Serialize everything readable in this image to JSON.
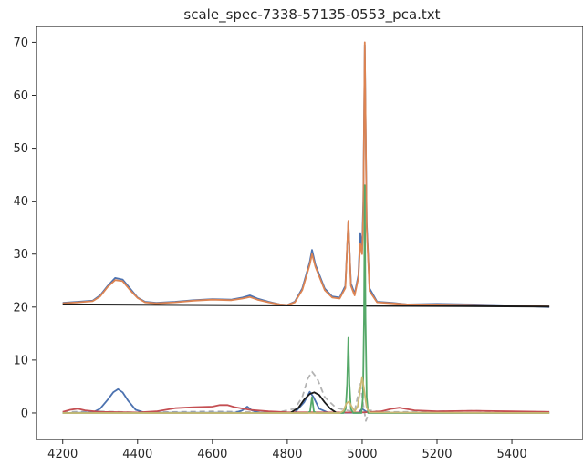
{
  "chart_data": {
    "type": "line",
    "title": "scale_spec-7338-57135-0553_pca.txt",
    "xlabel": "",
    "ylabel": "",
    "xlim": [
      4130,
      5590
    ],
    "ylim": [
      -5,
      73
    ],
    "x_ticks": [
      4200,
      4400,
      4600,
      4800,
      5000,
      5200,
      5400
    ],
    "y_ticks": [
      0,
      10,
      20,
      30,
      40,
      50,
      60,
      70
    ],
    "grid": false,
    "legend": "none",
    "series": [
      {
        "kind": "spectrum",
        "color": "#4c72b0",
        "x": [
          4200,
          4240,
          4280,
          4300,
          4320,
          4340,
          4360,
          4380,
          4400,
          4420,
          4450,
          4500,
          4550,
          4600,
          4650,
          4680,
          4700,
          4720,
          4750,
          4780,
          4800,
          4820,
          4840,
          4860,
          4866,
          4875,
          4900,
          4920,
          4940,
          4955,
          4963,
          4970,
          4980,
          4990,
          4995,
          5000,
          5003,
          5007,
          5012,
          5020,
          5040,
          5080,
          5120,
          5200,
          5300,
          5400,
          5500
        ],
        "y": [
          20.8,
          21.0,
          21.2,
          22.2,
          24.0,
          25.5,
          25.2,
          23.5,
          21.8,
          21.0,
          20.8,
          21.0,
          21.3,
          21.5,
          21.4,
          21.8,
          22.2,
          21.6,
          21.0,
          20.5,
          20.4,
          21.0,
          23.5,
          28.5,
          30.8,
          28.0,
          23.5,
          22.0,
          21.8,
          24.0,
          36.0,
          24.5,
          22.5,
          26.0,
          34.0,
          31.0,
          40.0,
          69.5,
          36.0,
          23.5,
          21.0,
          20.8,
          20.5,
          20.6,
          20.5,
          20.3,
          20.0
        ]
      },
      {
        "kind": "model",
        "color": "#dd8452",
        "x": [
          4200,
          4240,
          4280,
          4300,
          4320,
          4340,
          4360,
          4380,
          4400,
          4420,
          4450,
          4500,
          4550,
          4600,
          4650,
          4680,
          4700,
          4720,
          4750,
          4780,
          4800,
          4820,
          4840,
          4860,
          4866,
          4875,
          4900,
          4920,
          4940,
          4955,
          4963,
          4970,
          4980,
          4990,
          4995,
          5000,
          5003,
          5007,
          5012,
          5020,
          5040,
          5080,
          5120,
          5200,
          5300,
          5400,
          5500
        ],
        "y": [
          20.7,
          20.9,
          21.1,
          22.0,
          23.8,
          25.1,
          24.9,
          23.2,
          21.7,
          20.9,
          20.7,
          20.9,
          21.2,
          21.4,
          21.3,
          21.6,
          21.9,
          21.4,
          20.9,
          20.5,
          20.4,
          20.9,
          23.2,
          28.0,
          30.0,
          27.6,
          23.2,
          21.8,
          21.6,
          23.6,
          36.3,
          24.0,
          22.2,
          25.5,
          32.0,
          30.0,
          38.0,
          70.0,
          35.0,
          23.0,
          20.9,
          20.7,
          20.5,
          20.5,
          20.4,
          20.3,
          20.1
        ]
      },
      {
        "kind": "continuum",
        "color": "#1a1a1a",
        "x": [
          4200,
          5500
        ],
        "y": [
          20.5,
          20.1
        ]
      },
      {
        "kind": "residual",
        "color": "#b3b3b3",
        "dashed": true,
        "x": [
          4200,
          4300,
          4400,
          4500,
          4600,
          4700,
          4780,
          4820,
          4840,
          4855,
          4866,
          4880,
          4900,
          4930,
          4960,
          4980,
          4995,
          5003,
          5010,
          5020,
          5050,
          5100,
          5200,
          5300,
          5400,
          5500
        ],
        "y": [
          0.2,
          0.3,
          0.1,
          0.2,
          0.3,
          0.2,
          0.2,
          0.8,
          3.0,
          6.5,
          7.8,
          6.5,
          3.0,
          1.0,
          0.5,
          0.3,
          5.5,
          1.5,
          -1.5,
          0.5,
          0.2,
          0.2,
          0.3,
          0.4,
          0.2,
          0.2
        ]
      },
      {
        "kind": "component",
        "color": "#4c72b0",
        "x": [
          4200,
          4280,
          4300,
          4320,
          4335,
          4348,
          4360,
          4375,
          4395,
          4420,
          4660,
          4680,
          4693,
          4705,
          4725,
          4820,
          4845,
          4860,
          4870,
          4885,
          4910,
          4990,
          5000,
          5010,
          5020,
          5500
        ],
        "y": [
          0,
          0.1,
          0.8,
          2.5,
          3.9,
          4.5,
          3.9,
          2.3,
          0.6,
          0.05,
          0.05,
          0.5,
          1.2,
          0.5,
          0.05,
          0.05,
          2.0,
          4.0,
          3.0,
          0.8,
          0.05,
          0.05,
          0.8,
          0.3,
          0.05,
          0
        ]
      },
      {
        "kind": "component",
        "color": "#c44e52",
        "x": [
          4200,
          4220,
          4240,
          4260,
          4300,
          4400,
          4450,
          4500,
          4550,
          4600,
          4620,
          4640,
          4660,
          4700,
          4750,
          4800,
          5000,
          5050,
          5080,
          5100,
          5140,
          5200,
          5300,
          5400,
          5500
        ],
        "y": [
          0.2,
          0.6,
          0.8,
          0.5,
          0.2,
          0.1,
          0.3,
          0.9,
          1.1,
          1.2,
          1.5,
          1.5,
          1.1,
          0.6,
          0.3,
          0.15,
          0.1,
          0.3,
          0.8,
          1.0,
          0.5,
          0.3,
          0.4,
          0.3,
          0.2
        ]
      },
      {
        "kind": "component",
        "color": "#1a1a1a",
        "x": [
          4810,
          4830,
          4845,
          4860,
          4872,
          4885,
          4900,
          4915,
          4930
        ],
        "y": [
          0.1,
          1.0,
          2.5,
          3.6,
          3.9,
          3.4,
          2.0,
          0.8,
          0.1
        ]
      },
      {
        "kind": "component",
        "color": "#55a868",
        "x": [
          4200,
          4855,
          4861,
          4866,
          4871,
          4877,
          4950,
          4956,
          4960,
          4963,
          4966,
          4970,
          4976,
          4998,
          5002,
          5005,
          5007,
          5009,
          5012,
          5016,
          5500
        ],
        "y": [
          0,
          0,
          0.3,
          3.0,
          0.3,
          0,
          0,
          0.8,
          5.5,
          14.2,
          5.5,
          0.8,
          0,
          0,
          3.0,
          18.0,
          43.0,
          18.0,
          3.0,
          0,
          0
        ]
      },
      {
        "kind": "component",
        "color": "#ccb974",
        "x": [
          4200,
          4940,
          4950,
          4958,
          4965,
          4972,
          4980,
          4988,
          4995,
          5000,
          5005,
          5012,
          5020,
          5500
        ],
        "y": [
          0,
          0,
          0.4,
          1.8,
          2.2,
          1.2,
          0.3,
          1.2,
          4.5,
          6.8,
          4.5,
          1.0,
          0.1,
          0
        ]
      }
    ]
  }
}
